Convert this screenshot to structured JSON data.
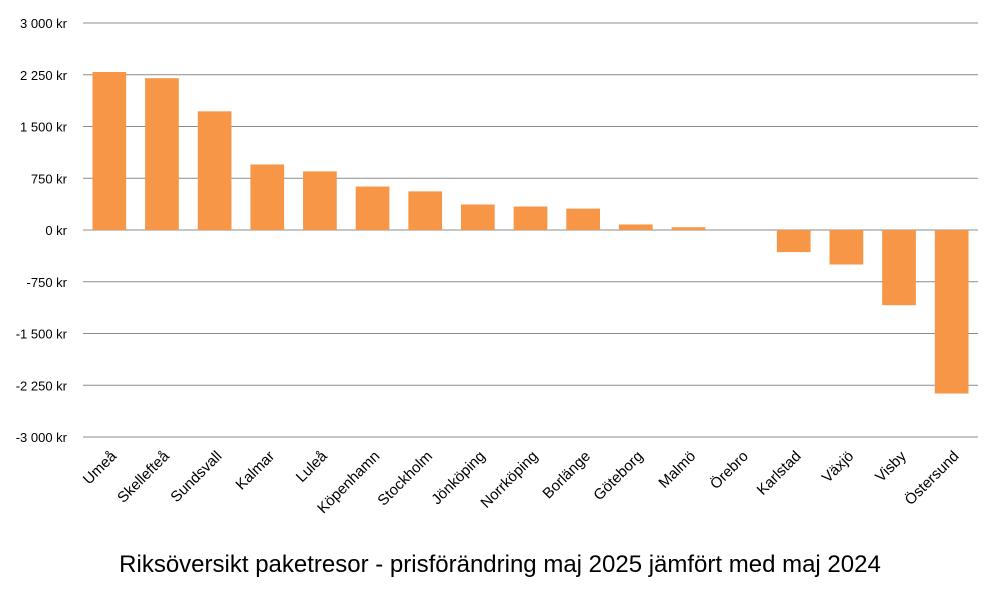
{
  "chart_data": {
    "type": "bar",
    "title": "Riksöversikt paketresor - prisförändring maj 2025 jämfört med maj 2024",
    "xlabel": "",
    "ylabel": "",
    "ylim": [
      -3000,
      3000
    ],
    "yticks": [
      3000,
      2250,
      1500,
      750,
      0,
      -750,
      -1500,
      -2250,
      -3000
    ],
    "ytick_labels": [
      "3 000 kr",
      "2 250 kr",
      "1 500 kr",
      "750 kr",
      "0 kr",
      "-750 kr",
      "-1 500 kr",
      "-2 250 kr",
      "-3 000 kr"
    ],
    "grid": true,
    "legend": "none",
    "bar_color": "#F79646",
    "categories": [
      "Umeå",
      "Skellefteå",
      "Sundsvall",
      "Kalmar",
      "Luleå",
      "Köpenhamn",
      "Stockholm",
      "Jönköping",
      "Norrköping",
      "Borlänge",
      "Göteborg",
      "Malmö",
      "Örebro",
      "Karlstad",
      "Växjö",
      "Visby",
      "Östersund"
    ],
    "values": [
      2290,
      2200,
      1720,
      950,
      850,
      630,
      560,
      370,
      340,
      310,
      80,
      40,
      0,
      -320,
      -500,
      -1090,
      -2370
    ]
  }
}
